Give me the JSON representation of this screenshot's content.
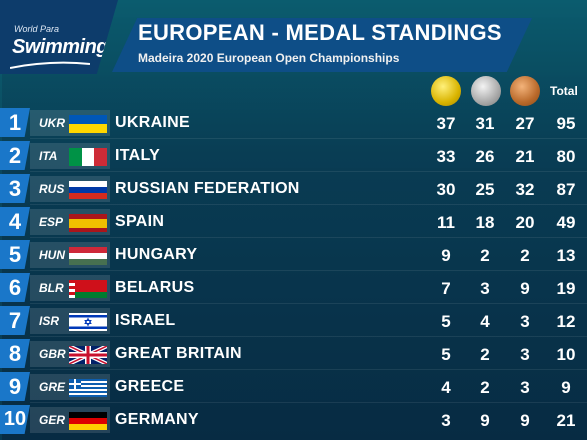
{
  "logo": {
    "small": "World Para",
    "big": "Swimming"
  },
  "header": {
    "title": "EUROPEAN - MEDAL STANDINGS",
    "subtitle": "Madeira 2020 European Open Championships",
    "total_label": "Total"
  },
  "colors": {
    "gold": "#d9b400",
    "silver": "#a9a9a9",
    "bronze": "#b9692a",
    "rank_bg": "#1a77c9"
  },
  "rows": [
    {
      "rank": "1",
      "code": "UKR",
      "country": "UKRAINE",
      "gold": "37",
      "silver": "31",
      "bronze": "27",
      "total": "95",
      "flag": "ukraine-flag-icon"
    },
    {
      "rank": "2",
      "code": "ITA",
      "country": "ITALY",
      "gold": "33",
      "silver": "26",
      "bronze": "21",
      "total": "80",
      "flag": "italy-flag-icon"
    },
    {
      "rank": "3",
      "code": "RUS",
      "country": "RUSSIAN FEDERATION",
      "gold": "30",
      "silver": "25",
      "bronze": "32",
      "total": "87",
      "flag": "russia-flag-icon"
    },
    {
      "rank": "4",
      "code": "ESP",
      "country": "SPAIN",
      "gold": "11",
      "silver": "18",
      "bronze": "20",
      "total": "49",
      "flag": "spain-flag-icon"
    },
    {
      "rank": "5",
      "code": "HUN",
      "country": "HUNGARY",
      "gold": "9",
      "silver": "2",
      "bronze": "2",
      "total": "13",
      "flag": "hungary-flag-icon"
    },
    {
      "rank": "6",
      "code": "BLR",
      "country": "BELARUS",
      "gold": "7",
      "silver": "3",
      "bronze": "9",
      "total": "19",
      "flag": "belarus-flag-icon"
    },
    {
      "rank": "7",
      "code": "ISR",
      "country": "ISRAEL",
      "gold": "5",
      "silver": "4",
      "bronze": "3",
      "total": "12",
      "flag": "israel-flag-icon"
    },
    {
      "rank": "8",
      "code": "GBR",
      "country": "GREAT BRITAIN",
      "gold": "5",
      "silver": "2",
      "bronze": "3",
      "total": "10",
      "flag": "great-britain-flag-icon"
    },
    {
      "rank": "9",
      "code": "GRE",
      "country": "GREECE",
      "gold": "4",
      "silver": "2",
      "bronze": "3",
      "total": "9",
      "flag": "greece-flag-icon"
    },
    {
      "rank": "10",
      "code": "GER",
      "country": "GERMANY",
      "gold": "3",
      "silver": "9",
      "bronze": "9",
      "total": "21",
      "flag": "germany-flag-icon"
    }
  ]
}
